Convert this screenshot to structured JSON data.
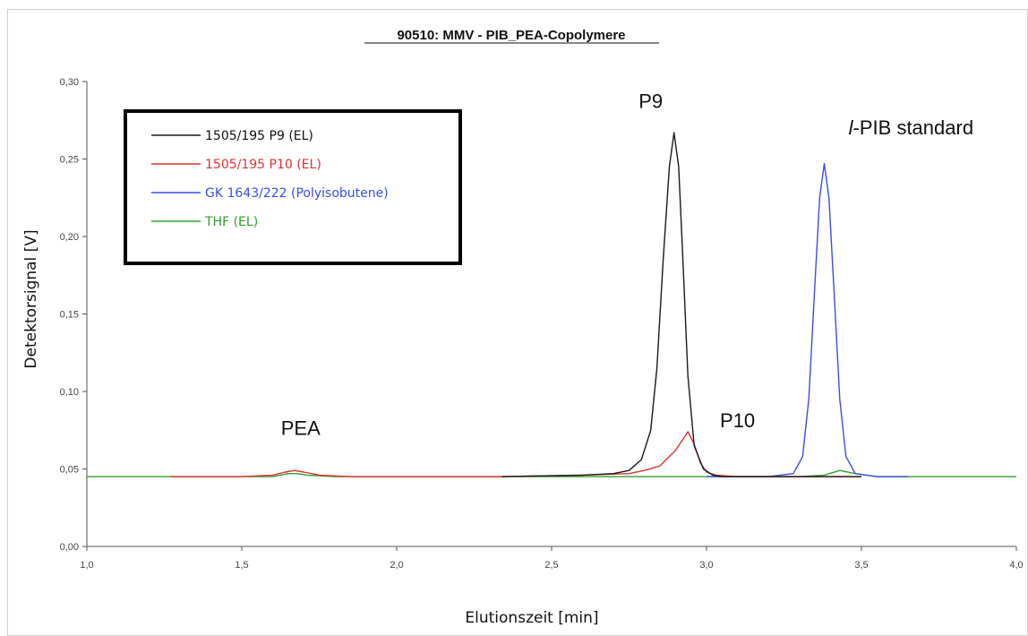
{
  "chart_data": {
    "type": "line",
    "title": "90510: MMV - PIB_PEA-Copolymere",
    "xlabel": "Elutionszeit [min]",
    "ylabel": "Detektorsignal [V]",
    "xlim": [
      1.0,
      4.0
    ],
    "ylim": [
      0.0,
      0.3
    ],
    "x_ticks": [
      "1,0",
      "1,5",
      "2,0",
      "2,5",
      "3,0",
      "3,5",
      "4,0"
    ],
    "y_ticks": [
      "0,00",
      "0,05",
      "0,10",
      "0,15",
      "0,20",
      "0,25",
      "0,30"
    ],
    "grid": false,
    "legend_position": "top-left",
    "series": [
      {
        "name": "1505/195 P9 (EL)",
        "color": "#1a1a1a",
        "x": [
          2.34,
          2.6,
          2.7,
          2.75,
          2.79,
          2.82,
          2.84,
          2.86,
          2.88,
          2.895,
          2.91,
          2.925,
          2.94,
          2.96,
          2.99,
          3.02,
          3.05,
          3.1,
          3.2,
          3.3,
          3.4,
          3.5
        ],
        "y": [
          0.045,
          0.046,
          0.047,
          0.049,
          0.056,
          0.075,
          0.115,
          0.185,
          0.245,
          0.267,
          0.245,
          0.18,
          0.11,
          0.065,
          0.05,
          0.046,
          0.045,
          0.045,
          0.045,
          0.045,
          0.045,
          0.045
        ]
      },
      {
        "name": "1505/195 P10 (EL)",
        "color": "#e03030",
        "x": [
          1.27,
          1.5,
          1.6,
          1.64,
          1.67,
          1.7,
          1.75,
          1.85,
          2.34,
          2.6,
          2.75,
          2.8,
          2.85,
          2.9,
          2.92,
          2.94,
          2.96,
          2.98,
          3.0,
          3.03,
          3.1,
          3.3,
          3.45,
          3.5
        ],
        "y": [
          0.045,
          0.045,
          0.046,
          0.048,
          0.049,
          0.048,
          0.046,
          0.045,
          0.045,
          0.046,
          0.047,
          0.049,
          0.052,
          0.062,
          0.068,
          0.074,
          0.066,
          0.054,
          0.048,
          0.046,
          0.045,
          0.045,
          0.045,
          0.045
        ]
      },
      {
        "name": "GK 1643/222 (Polyisobutene)",
        "color": "#3a4fe0",
        "x": [
          3.0,
          3.2,
          3.28,
          3.31,
          3.33,
          3.35,
          3.365,
          3.38,
          3.395,
          3.41,
          3.43,
          3.45,
          3.48,
          3.55,
          3.65
        ],
        "y": [
          0.045,
          0.045,
          0.047,
          0.058,
          0.095,
          0.17,
          0.225,
          0.247,
          0.225,
          0.17,
          0.095,
          0.058,
          0.047,
          0.045,
          0.045
        ]
      },
      {
        "name": "THF (EL)",
        "color": "#2ea02e",
        "x": [
          1.0,
          1.6,
          1.65,
          1.68,
          1.71,
          1.8,
          3.3,
          3.38,
          3.43,
          3.48,
          3.55,
          4.0
        ],
        "y": [
          0.045,
          0.045,
          0.047,
          0.047,
          0.046,
          0.045,
          0.045,
          0.046,
          0.049,
          0.047,
          0.045,
          0.045
        ]
      }
    ],
    "annotations": [
      {
        "text": "PEA",
        "x": 1.69,
        "y": 0.072
      },
      {
        "text": "P9",
        "x": 2.82,
        "y": 0.283
      },
      {
        "text": "P10",
        "x": 3.1,
        "y": 0.077
      },
      {
        "text_italic": "l",
        "text": "-PIB standard",
        "x": 3.66,
        "y": 0.266
      }
    ]
  }
}
